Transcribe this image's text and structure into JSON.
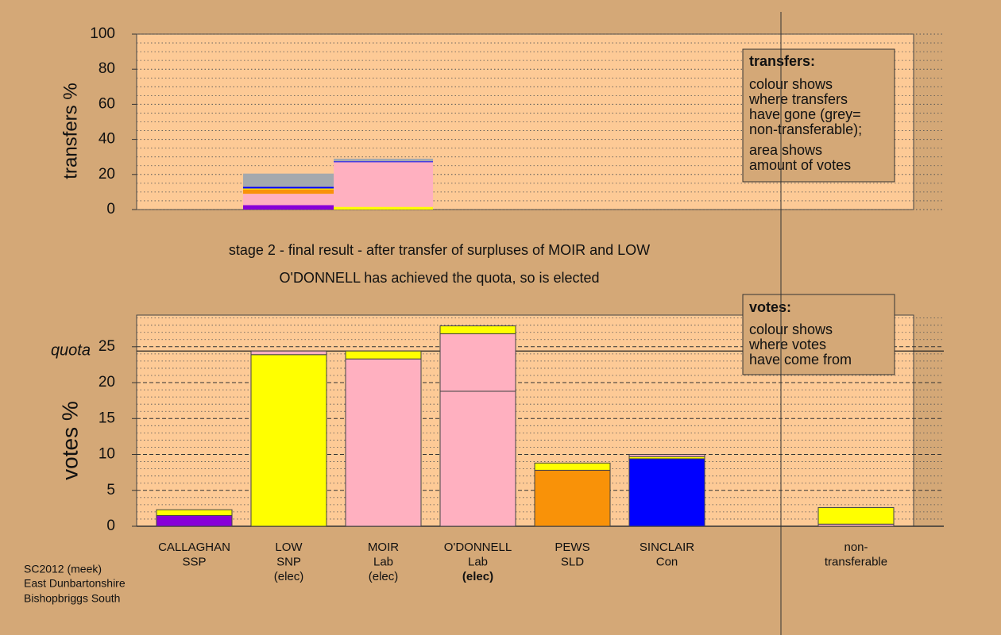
{
  "chart_data": [
    {
      "type": "stacked-bar",
      "y_label": "transfers %",
      "ylim": [
        0,
        100
      ],
      "yticks": [
        0,
        20,
        40,
        60,
        80,
        100
      ],
      "minor_yticks": [
        5,
        10,
        15,
        25,
        30,
        35,
        45,
        50,
        55,
        65,
        70,
        75,
        85,
        90,
        95
      ],
      "grid_style": "dotted",
      "bars": [
        {
          "segments": [
            {
              "value": 2.5,
              "color": "#8800d8"
            },
            {
              "value": 6.5,
              "color": "#ffb0c0"
            },
            {
              "value": 2.5,
              "color": "#f99208"
            },
            {
              "value": 0.5,
              "color": "#ffff00"
            },
            {
              "value": 1,
              "color": "#0000ff"
            },
            {
              "value": 7.5,
              "color": "#a4a9ae"
            }
          ]
        },
        {
          "segments": [
            {
              "value": 1.5,
              "color": "#ffff00"
            },
            {
              "value": 25.5,
              "color": "#ffb0c0"
            },
            {
              "value": 0.5,
              "color": "#0000ff"
            },
            {
              "value": 1.5,
              "color": "#a4a9ae"
            }
          ]
        }
      ],
      "note": {
        "title": "transfers:",
        "paragraphs": [
          [
            "colour shows",
            "where transfers",
            "have gone (grey=",
            "non-transferable);"
          ],
          [
            "area shows",
            "amount of votes"
          ]
        ]
      }
    },
    {
      "type": "stacked-bar",
      "y_label": "votes %",
      "ylim": [
        0,
        29.4
      ],
      "yticks": [
        0,
        5,
        10,
        15,
        20,
        25
      ],
      "minor_yticks": [
        1,
        2,
        3,
        4,
        6,
        7,
        8,
        9,
        11,
        12,
        13,
        14,
        16,
        17,
        18,
        19,
        21,
        22,
        23,
        24,
        26,
        27,
        28,
        29
      ],
      "grid_style": "dashed",
      "quota": {
        "label": "quota",
        "value": 24.4
      },
      "categories": [
        [
          "CALLAGHAN",
          "SSP"
        ],
        [
          "LOW",
          "SNP",
          "(elec)"
        ],
        [
          "MOIR",
          "Lab",
          "(elec)"
        ],
        [
          "O'DONNELL",
          "Lab",
          "(elec)"
        ],
        [
          "PEWS",
          "SLD"
        ],
        [
          "SINCLAIR",
          "Con"
        ],
        null,
        [
          "non-",
          "transferable"
        ]
      ],
      "highlight_category": 3,
      "bars": [
        {
          "segments": [
            {
              "value": 1.5,
              "color": "#8800d8"
            },
            {
              "value": 0.8,
              "color": "#ffff00"
            }
          ]
        },
        {
          "segments": [
            {
              "value": 23.9,
              "color": "#ffff00"
            },
            {
              "value": 0.5,
              "color": "#ffb0c0"
            }
          ]
        },
        {
          "segments": [
            {
              "value": 23.3,
              "color": "#ffb0c0"
            },
            {
              "value": 1.1,
              "color": "#ffff00"
            }
          ]
        },
        {
          "segments": [
            {
              "value": 18.8,
              "color": "#ffb0c0"
            },
            {
              "value": 8.0,
              "color": "#ffb0c0"
            },
            {
              "value": 1.1,
              "color": "#ffff00"
            }
          ]
        },
        {
          "segments": [
            {
              "value": 7.8,
              "color": "#f99208"
            },
            {
              "value": 1.0,
              "color": "#ffff00"
            }
          ]
        },
        {
          "segments": [
            {
              "value": 9.4,
              "color": "#0000ff"
            },
            {
              "value": 0.3,
              "color": "#ffff00"
            },
            {
              "value": 0.3,
              "color": "#ffb0c0"
            }
          ]
        },
        null,
        {
          "segments": [
            {
              "value": 0.3,
              "color": "#ffb0c0"
            },
            {
              "value": 2.3,
              "color": "#ffff00"
            }
          ]
        }
      ],
      "note": {
        "title": "votes:",
        "paragraphs": [
          [
            "colour shows",
            "where votes",
            "have come from"
          ]
        ]
      }
    }
  ],
  "captions": [
    "stage 2 - final result - after transfer of surpluses of MOIR and LOW",
    "O'DONNELL has achieved the quota, so is elected"
  ],
  "footer": [
    "SC2012 (meek)",
    "East Dunbartonshire",
    "Bishopbriggs South"
  ]
}
